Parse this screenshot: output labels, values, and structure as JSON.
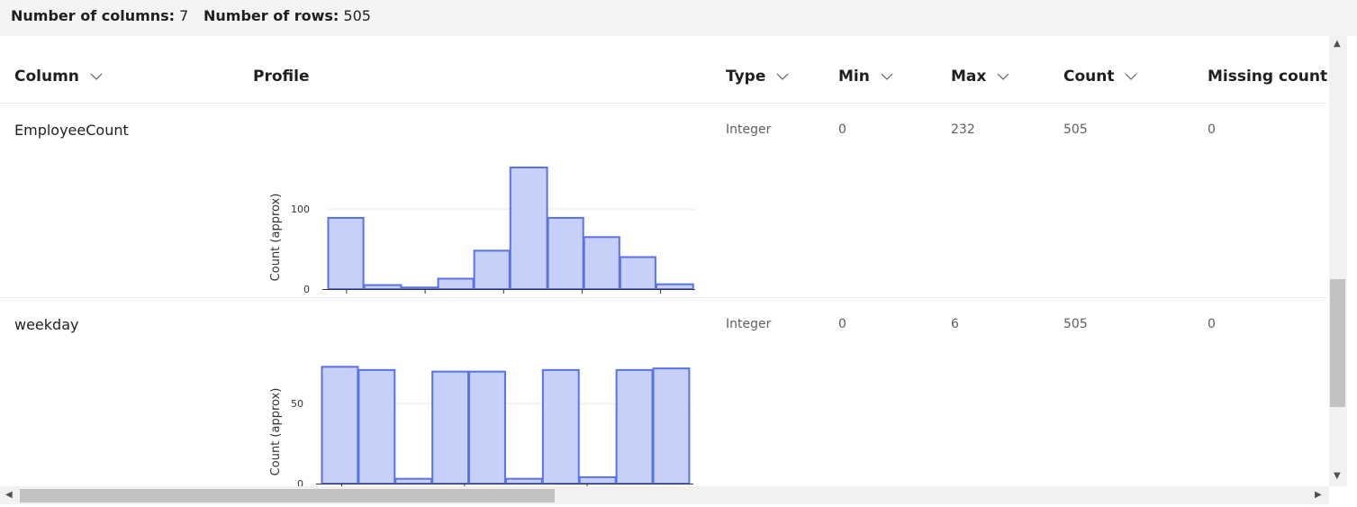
{
  "summary": {
    "columns_label": "Number of columns:",
    "columns_value": "7",
    "rows_label": "Number of rows:",
    "rows_value": "505"
  },
  "headers": {
    "column": "Column",
    "profile": "Profile",
    "type": "Type",
    "min": "Min",
    "max": "Max",
    "count": "Count",
    "missing": "Missing count"
  },
  "icons": {
    "sort": "chevron-down-icon",
    "scroll_up": "triangle-up-icon",
    "scroll_down": "triangle-down-icon",
    "scroll_left": "triangle-left-icon",
    "scroll_right": "triangle-right-icon"
  },
  "colors": {
    "bar_fill": "#c6d0f9",
    "bar_stroke": "#5a72e8"
  },
  "rows": [
    {
      "name": "EmployeeCount",
      "type": "Integer",
      "min": "0",
      "max": "232",
      "count": "505",
      "missing": "0",
      "chart_data": {
        "type": "bar",
        "ylabel": "Count (approx)",
        "ylim": [
          0,
          152
        ],
        "yticks": [
          "0",
          "100"
        ],
        "ytick_values": [
          0,
          100
        ],
        "xlim": [
          -12,
          222
        ],
        "xticks": [
          "0",
          "50",
          "100",
          "150",
          "200"
        ],
        "xtick_values": [
          0,
          50,
          100,
          150,
          200
        ],
        "bins": [
          [
            -12,
            11
          ],
          [
            11,
            35
          ],
          [
            35,
            58
          ],
          [
            58,
            81
          ],
          [
            81,
            104
          ],
          [
            104,
            128
          ],
          [
            128,
            151
          ],
          [
            151,
            174
          ],
          [
            174,
            197
          ],
          [
            197,
            221
          ]
        ],
        "values": [
          89,
          5,
          2,
          13,
          48,
          152,
          89,
          65,
          40,
          6
        ]
      }
    },
    {
      "name": "weekday",
      "type": "Integer",
      "min": "0",
      "max": "6",
      "count": "505",
      "missing": "0",
      "chart_data": {
        "type": "bar",
        "ylabel": "Count (approx)",
        "ylim": [
          0,
          76
        ],
        "yticks": [
          "0",
          "50"
        ],
        "ytick_values": [
          0,
          50
        ],
        "xlim": [
          -0.33,
          5.73
        ],
        "xticks": [
          "0",
          "2",
          "4"
        ],
        "xtick_values": [
          0,
          2,
          4
        ],
        "bins": [
          [
            -0.33,
            0.27
          ],
          [
            0.27,
            0.87
          ],
          [
            0.87,
            1.47
          ],
          [
            1.47,
            2.07
          ],
          [
            2.07,
            2.67
          ],
          [
            2.67,
            3.27
          ],
          [
            3.27,
            3.87
          ],
          [
            3.87,
            4.47
          ],
          [
            4.47,
            5.07
          ],
          [
            5.07,
            5.67
          ]
        ],
        "values": [
          73,
          71,
          3,
          70,
          70,
          3,
          71,
          4,
          71,
          72
        ]
      }
    }
  ]
}
